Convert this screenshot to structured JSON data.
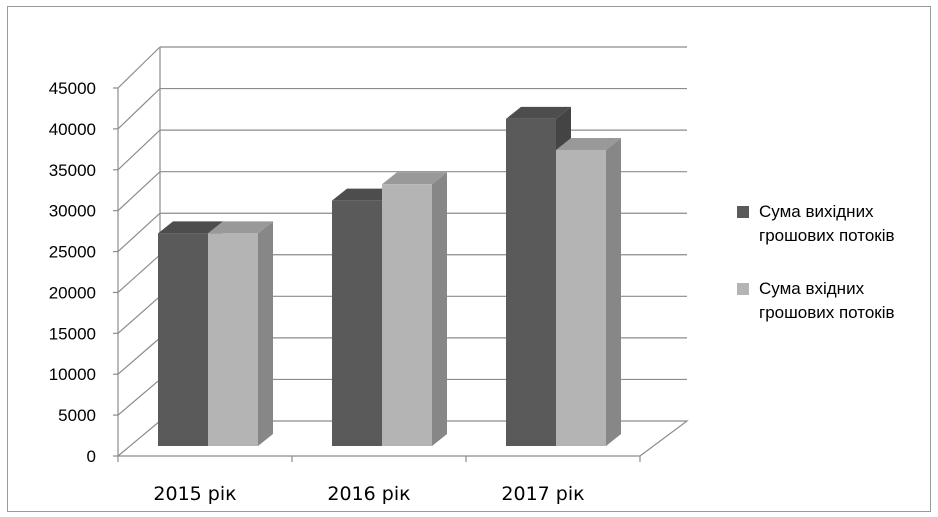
{
  "chart_data": {
    "type": "bar",
    "categories": [
      "2015 рік",
      "2016 рік",
      "2017 рік"
    ],
    "series": [
      {
        "name": "Сума вихідних грошових потоків",
        "values": [
          26000,
          30000,
          40000
        ],
        "color": "#5a5a5a"
      },
      {
        "name": "Сума вхідних грошових потоків",
        "values": [
          26000,
          32000,
          36200
        ],
        "color": "#b4b4b4"
      }
    ],
    "ylim": [
      0,
      45000
    ],
    "yticks": [
      0,
      5000,
      10000,
      15000,
      20000,
      25000,
      30000,
      35000,
      40000,
      45000
    ],
    "title": "",
    "xlabel": "",
    "ylabel": "",
    "grid": true,
    "legend_position": "right",
    "legend_lines": [
      [
        "Сума вихідних",
        "грошових потоків"
      ],
      [
        "Сума вхідних",
        "грошових потоків"
      ]
    ]
  }
}
